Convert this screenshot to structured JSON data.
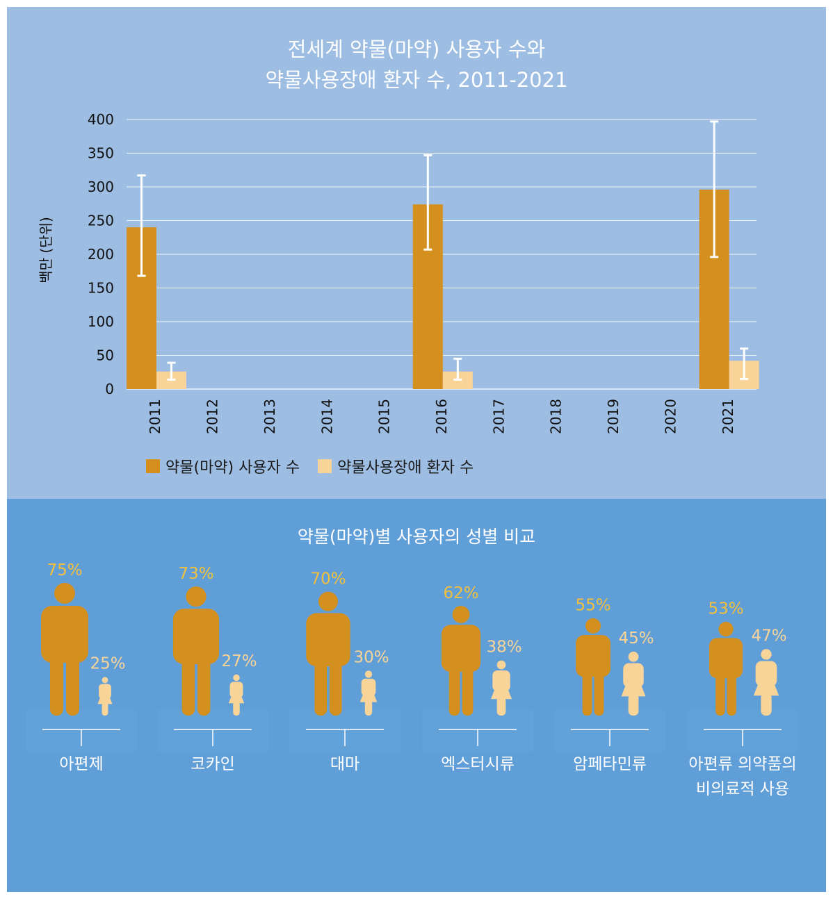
{
  "top_title": {
    "line1": "전세계 약물(마약) 사용자 수와",
    "line2": "약물사용장애 환자 수, 2011-2021"
  },
  "colors": {
    "users": "#d4901e",
    "patients": "#f8d498",
    "top_bg": "#9dbde3",
    "bottom_bg": "#609ed8",
    "male_pct_text": "#f2c03c",
    "female_pct_text": "#f8d498"
  },
  "chart_data": {
    "type": "bar",
    "categories": [
      "2011",
      "2012",
      "2013",
      "2014",
      "2015",
      "2016",
      "2017",
      "2018",
      "2019",
      "2020",
      "2021"
    ],
    "series": [
      {
        "name": "약물(마약) 사용자 수",
        "values": [
          240,
          null,
          null,
          null,
          null,
          274,
          null,
          null,
          null,
          null,
          296
        ],
        "error_low": [
          168,
          null,
          null,
          null,
          null,
          207,
          null,
          null,
          null,
          null,
          196
        ],
        "error_high": [
          317,
          null,
          null,
          null,
          null,
          347,
          null,
          null,
          null,
          null,
          397
        ]
      },
      {
        "name": "약물사용장애 환자 수",
        "values": [
          26,
          null,
          null,
          null,
          null,
          26,
          null,
          null,
          null,
          null,
          42
        ],
        "error_low": [
          14,
          null,
          null,
          null,
          null,
          14,
          null,
          null,
          null,
          null,
          15
        ],
        "error_high": [
          39,
          null,
          null,
          null,
          null,
          45,
          null,
          null,
          null,
          null,
          60
        ]
      }
    ],
    "ylabel": "백만 (단위)",
    "ylim": [
      0,
      400
    ],
    "yticks": [
      "0",
      "50",
      "100",
      "150",
      "200",
      "250",
      "300",
      "350",
      "400"
    ],
    "grid": true,
    "legend_position": "bottom"
  },
  "gender_section": {
    "title": "약물(마약)별 사용자의 성별 비교",
    "items": [
      {
        "label_lines": [
          "아편제"
        ],
        "male": 75,
        "female": 25,
        "male_label": "75%",
        "female_label": "25%"
      },
      {
        "label_lines": [
          "코카인"
        ],
        "male": 73,
        "female": 27,
        "male_label": "73%",
        "female_label": "27%"
      },
      {
        "label_lines": [
          "대마"
        ],
        "male": 70,
        "female": 30,
        "male_label": "70%",
        "female_label": "30%"
      },
      {
        "label_lines": [
          "엑스터시류"
        ],
        "male": 62,
        "female": 38,
        "male_label": "62%",
        "female_label": "38%"
      },
      {
        "label_lines": [
          "암페타민류"
        ],
        "male": 55,
        "female": 45,
        "male_label": "55%",
        "female_label": "45%"
      },
      {
        "label_lines": [
          "아편류 의약품의",
          "비의료적 사용"
        ],
        "male": 53,
        "female": 47,
        "male_label": "53%",
        "female_label": "47%"
      }
    ]
  }
}
